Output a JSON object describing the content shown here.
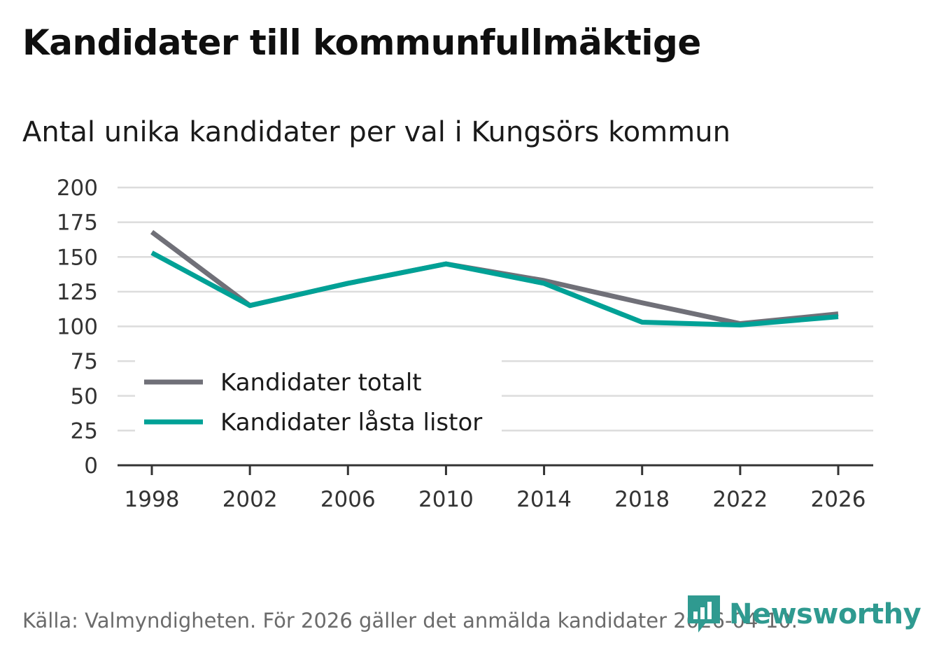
{
  "chart_data": {
    "type": "line",
    "title": "Kandidater till kommunfullmäktige",
    "subtitle": "Antal unika kandidater per val i Kungsörs kommun",
    "xlabel": "",
    "ylabel": "",
    "x": [
      1998,
      2002,
      2006,
      2010,
      2014,
      2018,
      2022,
      2026
    ],
    "x_tick_labels": [
      "1998",
      "2002",
      "2006",
      "2010",
      "2014",
      "2018",
      "2022",
      "2026"
    ],
    "ylim": [
      0,
      200
    ],
    "y_ticks": [
      0,
      25,
      50,
      75,
      100,
      125,
      150,
      175,
      200
    ],
    "y_tick_labels": [
      "0",
      "25",
      "50",
      "75",
      "100",
      "125",
      "150",
      "175",
      "200"
    ],
    "grid": true,
    "legend_position": "bottom-left",
    "series": [
      {
        "name": "Kandidater totalt",
        "color": "#707078",
        "values": [
          168,
          115,
          131,
          145,
          133,
          117,
          102,
          109
        ]
      },
      {
        "name": "Kandidater låsta listor",
        "color": "#00a196",
        "values": [
          153,
          115,
          131,
          145,
          131,
          103,
          101,
          107
        ]
      }
    ]
  },
  "footer": {
    "source": "Källa: Valmyndigheten. För 2026 gäller det anmälda kandidater 2026-04-10.",
    "brand": "Newsworthy",
    "brand_color": "#2f9a90"
  }
}
